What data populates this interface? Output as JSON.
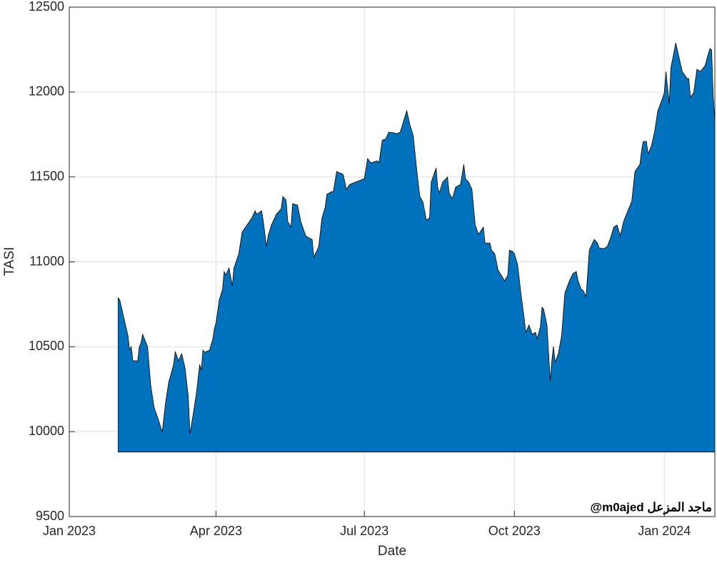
{
  "chart_data": {
    "type": "area",
    "xlabel": "Date",
    "ylabel": "TASI",
    "annotation": "@m0ajed ماجد المزعل",
    "color": "#0072bd",
    "edge_color": "#000000",
    "base_value": 9880,
    "grid": true,
    "xlim": [
      "2023-01-01",
      "2024-02-01"
    ],
    "xticks": [
      {
        "value": "2023-01-01",
        "label": "Jan 2023"
      },
      {
        "value": "2023-04-01",
        "label": "Apr 2023"
      },
      {
        "value": "2023-07-01",
        "label": "Jul 2023"
      },
      {
        "value": "2023-10-01",
        "label": "Oct 2023"
      },
      {
        "value": "2024-01-01",
        "label": "Jan 2024"
      }
    ],
    "ylim": [
      9500,
      12500
    ],
    "yticks": [
      9500,
      10000,
      10500,
      11000,
      11500,
      12000,
      12500
    ],
    "x": [
      "2023-01-31",
      "2023-02-01",
      "2023-02-03",
      "2023-02-06",
      "2023-02-07",
      "2023-02-08",
      "2023-02-09",
      "2023-02-12",
      "2023-02-13",
      "2023-02-14",
      "2023-02-15",
      "2023-02-18",
      "2023-02-20",
      "2023-02-22",
      "2023-02-25",
      "2023-02-27",
      "2023-03-01",
      "2023-03-03",
      "2023-03-06",
      "2023-03-07",
      "2023-03-09",
      "2023-03-11",
      "2023-03-13",
      "2023-03-15",
      "2023-03-16",
      "2023-03-18",
      "2023-03-20",
      "2023-03-22",
      "2023-03-23",
      "2023-03-24",
      "2023-03-25",
      "2023-03-28",
      "2023-03-30",
      "2023-03-31",
      "2023-04-01",
      "2023-04-03",
      "2023-04-05",
      "2023-04-06",
      "2023-04-07",
      "2023-04-09",
      "2023-04-11",
      "2023-04-12",
      "2023-04-15",
      "2023-04-17",
      "2023-04-20",
      "2023-04-23",
      "2023-04-25",
      "2023-04-26",
      "2023-04-29",
      "2023-04-30",
      "2023-05-02",
      "2023-05-03",
      "2023-05-05",
      "2023-05-08",
      "2023-05-11",
      "2023-05-12",
      "2023-05-14",
      "2023-05-15",
      "2023-05-17",
      "2023-05-18",
      "2023-05-21",
      "2023-05-23",
      "2023-05-26",
      "2023-05-28",
      "2023-05-30",
      "2023-05-31",
      "2023-06-03",
      "2023-06-05",
      "2023-06-07",
      "2023-06-08",
      "2023-06-11",
      "2023-06-12",
      "2023-06-14",
      "2023-06-16",
      "2023-06-18",
      "2023-06-20",
      "2023-06-22",
      "2023-07-01",
      "2023-07-03",
      "2023-07-05",
      "2023-07-09",
      "2023-07-10",
      "2023-07-12",
      "2023-07-14",
      "2023-07-16",
      "2023-07-19",
      "2023-07-21",
      "2023-07-23",
      "2023-07-25",
      "2023-07-27",
      "2023-07-29",
      "2023-07-31",
      "2023-08-02",
      "2023-08-04",
      "2023-08-06",
      "2023-08-08",
      "2023-08-10",
      "2023-08-11",
      "2023-08-14",
      "2023-08-15",
      "2023-08-16",
      "2023-08-18",
      "2023-08-21",
      "2023-08-22",
      "2023-08-24",
      "2023-08-26",
      "2023-08-29",
      "2023-08-31",
      "2023-09-01",
      "2023-09-03",
      "2023-09-05",
      "2023-09-07",
      "2023-09-09",
      "2023-09-12",
      "2023-09-13",
      "2023-09-16",
      "2023-09-17",
      "2023-09-19",
      "2023-09-21",
      "2023-09-23",
      "2023-09-25",
      "2023-09-27",
      "2023-09-28",
      "2023-09-30",
      "2023-10-01",
      "2023-10-03",
      "2023-10-05",
      "2023-10-07",
      "2023-10-08",
      "2023-10-10",
      "2023-10-12",
      "2023-10-14",
      "2023-10-15",
      "2023-10-17",
      "2023-10-18",
      "2023-10-19",
      "2023-10-21",
      "2023-10-23",
      "2023-10-24",
      "2023-10-25",
      "2023-10-26",
      "2023-10-28",
      "2023-10-30",
      "2023-11-01",
      "2023-11-04",
      "2023-11-06",
      "2023-11-08",
      "2023-11-09",
      "2023-11-11",
      "2023-11-12",
      "2023-11-14",
      "2023-11-16",
      "2023-11-19",
      "2023-11-21",
      "2023-11-22",
      "2023-11-25",
      "2023-11-27",
      "2023-11-29",
      "2023-12-01",
      "2023-12-03",
      "2023-12-05",
      "2023-12-07",
      "2023-12-10",
      "2023-12-12",
      "2023-12-14",
      "2023-12-17",
      "2023-12-18",
      "2023-12-19",
      "2023-12-21",
      "2023-12-22",
      "2023-12-24",
      "2023-12-26",
      "2023-12-28",
      "2023-12-30",
      "2024-01-01",
      "2024-01-02",
      "2024-01-04",
      "2024-01-05",
      "2024-01-07",
      "2024-01-08",
      "2024-01-10",
      "2024-01-12",
      "2024-01-15",
      "2024-01-16",
      "2024-01-17",
      "2024-01-19",
      "2024-01-21",
      "2024-01-23",
      "2024-01-26",
      "2024-01-28",
      "2024-01-29",
      "2024-01-30",
      "2024-01-31",
      "2024-02-01"
    ],
    "values": [
      10788,
      10775,
      10691,
      10565,
      10480,
      10501,
      10417,
      10417,
      10501,
      10522,
      10573,
      10501,
      10270,
      10144,
      10060,
      9997,
      10165,
      10291,
      10396,
      10472,
      10417,
      10459,
      10375,
      10207,
      9988,
      10102,
      10228,
      10396,
      10362,
      10480,
      10468,
      10480,
      10543,
      10607,
      10640,
      10775,
      10838,
      10943,
      10922,
      10964,
      10859,
      10964,
      11048,
      11175,
      11217,
      11259,
      11301,
      11280,
      11301,
      11238,
      11090,
      11154,
      11217,
      11280,
      11313,
      11385,
      11364,
      11238,
      11204,
      11343,
      11334,
      11238,
      11154,
      11141,
      11132,
      11027,
      11090,
      11259,
      11322,
      11398,
      11414,
      11414,
      11532,
      11524,
      11515,
      11427,
      11456,
      11490,
      11608,
      11583,
      11595,
      11583,
      11717,
      11722,
      11764,
      11760,
      11755,
      11764,
      11827,
      11890,
      11806,
      11743,
      11553,
      11385,
      11351,
      11246,
      11259,
      11469,
      11553,
      11440,
      11406,
      11469,
      11499,
      11406,
      11372,
      11440,
      11456,
      11574,
      11490,
      11469,
      11427,
      11217,
      11162,
      11204,
      11111,
      11111,
      11069,
      11048,
      10952,
      10922,
      10888,
      10922,
      11069,
      11061,
      11048,
      10985,
      10817,
      10670,
      10585,
      10628,
      10573,
      10585,
      10548,
      10619,
      10733,
      10720,
      10628,
      10299,
      10417,
      10501,
      10409,
      10459,
      10565,
      10817,
      10893,
      10931,
      10943,
      10893,
      10838,
      10834,
      10796,
      11069,
      11132,
      11111,
      11082,
      11078,
      11090,
      11141,
      11204,
      11217,
      11154,
      11238,
      11309,
      11355,
      11532,
      11574,
      11650,
      11709,
      11709,
      11637,
      11680,
      11764,
      11890,
      11940,
      11995,
      12121,
      11932,
      12142,
      12239,
      12290,
      12205,
      12121,
      12079,
      12079,
      11970,
      11995,
      12134,
      12121,
      12155,
      12226,
      12256,
      12248,
      11974,
      11827
    ]
  }
}
